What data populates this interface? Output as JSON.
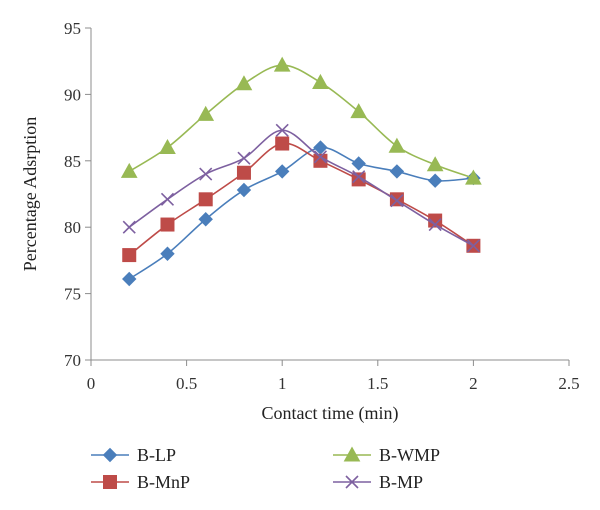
{
  "chart_data": {
    "type": "line",
    "xlabel": "Contact time (min)",
    "ylabel": "Percentage Adsrption",
    "xlim": [
      0,
      2.5
    ],
    "ylim": [
      70,
      95
    ],
    "x_ticks": [
      "0",
      "0.5",
      "1",
      "1.5",
      "2",
      "2.5"
    ],
    "y_ticks": [
      "70",
      "75",
      "80",
      "85",
      "90",
      "95"
    ],
    "grid": false,
    "legend_position": "bottom",
    "x": [
      0.2,
      0.4,
      0.6,
      0.8,
      1.0,
      1.2,
      1.4,
      1.6,
      1.8,
      2.0
    ],
    "series": [
      {
        "name": "B-LP",
        "color": "#4a7ebb",
        "marker": "diamond",
        "values": [
          76.1,
          78.0,
          80.6,
          82.8,
          84.2,
          86.0,
          84.8,
          84.2,
          83.5,
          83.7
        ]
      },
      {
        "name": "B-WMP",
        "color": "#98b954",
        "marker": "triangle",
        "values": [
          84.2,
          86.0,
          88.5,
          90.8,
          92.2,
          90.9,
          88.7,
          86.1,
          84.7,
          83.7
        ]
      },
      {
        "name": "B-MnP",
        "color": "#be4b48",
        "marker": "square",
        "values": [
          77.9,
          80.2,
          82.1,
          84.1,
          86.3,
          85.0,
          83.6,
          82.1,
          80.5,
          78.6
        ]
      },
      {
        "name": "B-MP",
        "color": "#7d60a0",
        "marker": "x",
        "values": [
          80.0,
          82.1,
          84.0,
          85.2,
          87.3,
          85.3,
          83.8,
          82.0,
          80.2,
          78.6
        ]
      }
    ]
  }
}
